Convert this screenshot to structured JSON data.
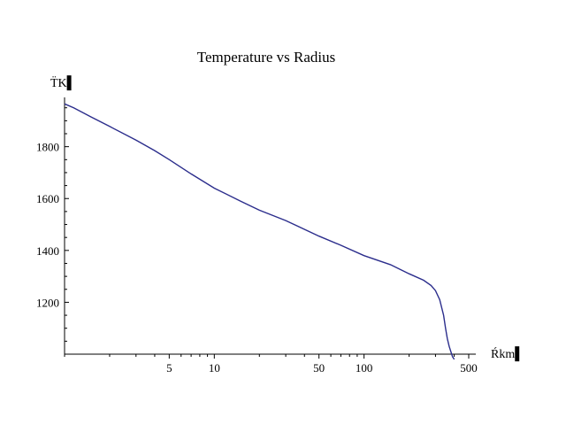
{
  "chart_data": {
    "type": "line",
    "title": "Temperature vs Radius",
    "xlabel": "Ŕkm▌",
    "ylabel": "T̈K▌",
    "xscale": "log",
    "yscale": "linear",
    "xlim": [
      1,
      500
    ],
    "ylim": [
      1000,
      1990
    ],
    "grid": false,
    "x_ticks": [
      {
        "value": 5,
        "label": "5"
      },
      {
        "value": 10,
        "label": "10"
      },
      {
        "value": 50,
        "label": "50"
      },
      {
        "value": 100,
        "label": "100"
      },
      {
        "value": 500,
        "label": "500"
      }
    ],
    "y_ticks": [
      {
        "value": 1200,
        "label": "1200"
      },
      {
        "value": 1400,
        "label": "1400"
      },
      {
        "value": 1600,
        "label": "1600"
      },
      {
        "value": 1800,
        "label": "1800"
      }
    ],
    "series": [
      {
        "color": "#2b2d8c",
        "x": [
          1,
          1.15,
          1.5,
          2,
          3,
          4,
          5,
          7,
          10,
          15,
          20,
          30,
          50,
          70,
          100,
          150,
          200,
          250,
          280,
          300,
          320,
          340,
          350,
          360,
          370,
          380,
          390,
          395,
          400
        ],
        "y": [
          1965,
          1950,
          1915,
          1878,
          1825,
          1785,
          1750,
          1695,
          1640,
          1590,
          1555,
          1515,
          1455,
          1420,
          1380,
          1345,
          1310,
          1285,
          1265,
          1245,
          1210,
          1150,
          1100,
          1060,
          1030,
          1010,
          990,
          985,
          980
        ]
      }
    ]
  }
}
